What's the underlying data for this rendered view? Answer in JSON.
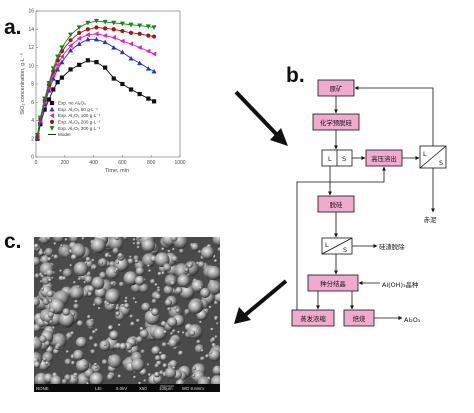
{
  "panels": {
    "a": "a.",
    "b": "b.",
    "c": "c."
  },
  "chart_data": {
    "type": "line",
    "xlabel": "Time, min",
    "ylabel": "SiO₂ concentration, g·L⁻¹",
    "xlim": [
      0,
      1000
    ],
    "ylim": [
      0,
      16
    ],
    "xticks": [
      "0",
      "200",
      "400",
      "600",
      "800",
      "1000"
    ],
    "yticks": [
      "0",
      "2",
      "4",
      "6",
      "8",
      "10",
      "12",
      "14",
      "16"
    ],
    "legend_position": "lower-center",
    "series": [
      {
        "name": "Exp. no Al₂O₃",
        "marker": "square",
        "color": "#111111",
        "x": [
          10,
          30,
          60,
          90,
          120,
          150,
          180,
          240,
          300,
          360,
          420,
          480,
          540,
          600,
          660,
          720,
          780,
          820
        ],
        "y": [
          2.0,
          3.6,
          5.2,
          6.3,
          7.4,
          8.2,
          8.7,
          9.6,
          10.1,
          10.6,
          10.4,
          9.8,
          8.6,
          8.0,
          7.4,
          6.9,
          6.4,
          6.1
        ]
      },
      {
        "name": "Exp. Al₂O₃ 50 g·L⁻¹",
        "marker": "triangle",
        "color": "#2233dd",
        "x": [
          10,
          30,
          60,
          90,
          120,
          150,
          180,
          240,
          300,
          360,
          420,
          480,
          540,
          600,
          660,
          720,
          780,
          820
        ],
        "y": [
          2.1,
          3.9,
          5.8,
          7.3,
          8.6,
          9.6,
          10.4,
          11.7,
          12.4,
          12.9,
          12.9,
          12.6,
          12.0,
          11.5,
          10.8,
          10.3,
          9.7,
          9.4
        ]
      },
      {
        "name": "Exp. Al₂O₃ 100 g·L⁻¹",
        "marker": "triangle-left",
        "color": "#dd22cc",
        "x": [
          10,
          30,
          60,
          90,
          120,
          150,
          180,
          240,
          300,
          360,
          420,
          480,
          540,
          600,
          660,
          720,
          780,
          820
        ],
        "y": [
          2.2,
          4.0,
          6.0,
          7.6,
          9.0,
          10.1,
          11.0,
          12.2,
          13.0,
          13.4,
          13.5,
          13.3,
          13.1,
          12.7,
          12.4,
          12.0,
          11.6,
          11.3
        ]
      },
      {
        "name": "Exp. Al₂O₃ 200 g·L⁻¹",
        "marker": "circle",
        "color": "#aa1111",
        "x": [
          10,
          30,
          60,
          90,
          120,
          150,
          180,
          240,
          300,
          360,
          420,
          480,
          540,
          600,
          660,
          720,
          780,
          820
        ],
        "y": [
          2.3,
          4.2,
          6.2,
          7.9,
          9.4,
          10.6,
          11.6,
          12.8,
          13.6,
          14.0,
          14.2,
          14.1,
          14.0,
          13.8,
          13.6,
          13.5,
          13.3,
          13.2
        ]
      },
      {
        "name": "Exp. Al₂O₃ 300 g·L⁻¹",
        "marker": "triangle-down",
        "color": "#118811",
        "x": [
          10,
          30,
          60,
          90,
          120,
          150,
          180,
          240,
          300,
          360,
          420,
          480,
          540,
          600,
          660,
          720,
          780,
          820
        ],
        "y": [
          2.4,
          4.3,
          6.4,
          8.1,
          9.7,
          11.0,
          12.0,
          13.4,
          14.2,
          14.7,
          14.9,
          14.8,
          14.7,
          14.6,
          14.5,
          14.4,
          14.3,
          14.2
        ]
      },
      {
        "name": "Model",
        "marker": "none",
        "color": "#111111",
        "x": [],
        "y": []
      }
    ]
  },
  "flow": {
    "ore": "原矿",
    "chem_desilication": "化学预脱硅",
    "high_pressure_leach": "高压溶出",
    "desilication": "脱硅",
    "seed_precipitation": "种分结晶",
    "evaporation": "蒸发浓缩",
    "calcination": "焙烧",
    "sep_L": "L",
    "sep_S": "S",
    "red_mud": "赤泥",
    "desil_product": "硅渣脱除",
    "aloh3_seed": "Al(OH)₃晶种",
    "al2o3": "Al₂O₃"
  },
  "sem": {
    "label1": "NONE",
    "label2": "LEI",
    "label3": "5.0kV",
    "label4": "X50",
    "label5": "100μm",
    "label6": "WD 8.6mm"
  }
}
